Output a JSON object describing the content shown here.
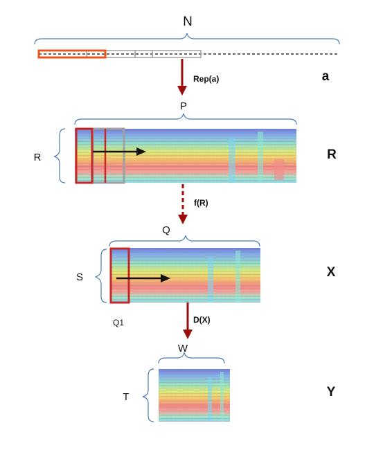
{
  "labels": {
    "N": "N",
    "a": "a",
    "rep": "Rep(a)",
    "P": "P",
    "R_side": "R",
    "R_row": "R",
    "fR": "f(R)",
    "Q": "Q",
    "S": "S",
    "X": "X",
    "Q1": "Q1",
    "DX": "D(X)",
    "W": "W",
    "T": "T",
    "Y": "Y"
  },
  "colors": {
    "arrow": "#9b0d0d",
    "brace": "#4a7ab5",
    "window_red": "#c62828",
    "window_orange": "#e8541e",
    "window_gray": "#a0a0a0"
  }
}
